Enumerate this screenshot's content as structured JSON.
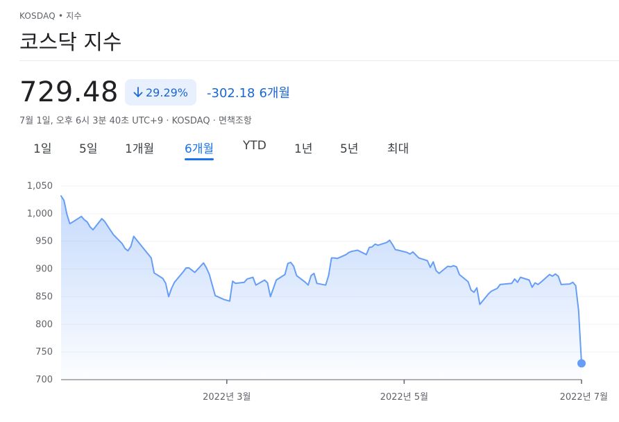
{
  "header": {
    "exchange": "KOSDAQ",
    "separator": "•",
    "category": "지수",
    "title": "코스닥 지수"
  },
  "quote": {
    "price": "729.48",
    "change_percent": "29.29%",
    "change_abs": "-302.18",
    "change_period": "6개월",
    "timestamp": "7월 1일, 오후 6시 3분 40초 UTC+9 · KOSDAQ · 면책조항"
  },
  "tabs": [
    {
      "label": "1일",
      "active": false
    },
    {
      "label": "5일",
      "active": false
    },
    {
      "label": "1개월",
      "active": false
    },
    {
      "label": "6개월",
      "active": true
    },
    {
      "label": "YTD",
      "active": false
    },
    {
      "label": "1년",
      "active": false
    },
    {
      "label": "5년",
      "active": false
    },
    {
      "label": "최대",
      "active": false
    }
  ],
  "colors": {
    "accent": "#1a73e8",
    "line": "#669df6",
    "negative": "#1967d2"
  },
  "chart_data": {
    "type": "area",
    "title": "",
    "xlabel": "",
    "ylabel": "",
    "ylim": [
      700,
      1050
    ],
    "yticks": [
      700,
      750,
      800,
      850,
      900,
      950,
      1000,
      1050
    ],
    "ytick_labels": [
      "700",
      "750",
      "800",
      "850",
      "900",
      "950",
      "1,000",
      "1,050"
    ],
    "xlim": [
      "2022-01-03",
      "2022-07-01"
    ],
    "xticks": [
      {
        "date": "2022-03-01",
        "label": "2022년 3월"
      },
      {
        "date": "2022-05-01",
        "label": "2022년 5월"
      },
      {
        "date": "2022-07-01",
        "label": "2022년 7월"
      }
    ],
    "grid": true,
    "series": [
      {
        "points": [
          [
            "2022-01-03",
            1032
          ],
          [
            "2022-01-04",
            1024
          ],
          [
            "2022-01-05",
            999
          ],
          [
            "2022-01-06",
            982
          ],
          [
            "2022-01-07",
            985
          ],
          [
            "2022-01-10",
            995
          ],
          [
            "2022-01-11",
            989
          ],
          [
            "2022-01-12",
            985
          ],
          [
            "2022-01-13",
            976
          ],
          [
            "2022-01-14",
            971
          ],
          [
            "2022-01-17",
            991
          ],
          [
            "2022-01-18",
            986
          ],
          [
            "2022-01-19",
            978
          ],
          [
            "2022-01-20",
            970
          ],
          [
            "2022-01-21",
            962
          ],
          [
            "2022-01-24",
            946
          ],
          [
            "2022-01-25",
            937
          ],
          [
            "2022-01-26",
            933
          ],
          [
            "2022-01-27",
            941
          ],
          [
            "2022-01-28",
            959
          ],
          [
            "2022-02-03",
            920
          ],
          [
            "2022-02-04",
            893
          ],
          [
            "2022-02-07",
            883
          ],
          [
            "2022-02-08",
            874
          ],
          [
            "2022-02-09",
            850
          ],
          [
            "2022-02-10",
            865
          ],
          [
            "2022-02-11",
            876
          ],
          [
            "2022-02-14",
            895
          ],
          [
            "2022-02-15",
            902
          ],
          [
            "2022-02-16",
            902
          ],
          [
            "2022-02-17",
            898
          ],
          [
            "2022-02-18",
            894
          ],
          [
            "2022-02-21",
            911
          ],
          [
            "2022-02-22",
            902
          ],
          [
            "2022-02-23",
            890
          ],
          [
            "2022-02-24",
            871
          ],
          [
            "2022-02-25",
            852
          ],
          [
            "2022-02-28",
            845
          ],
          [
            "2022-03-02",
            842
          ],
          [
            "2022-03-03",
            878
          ],
          [
            "2022-03-04",
            874
          ],
          [
            "2022-03-07",
            876
          ],
          [
            "2022-03-08",
            882
          ],
          [
            "2022-03-10",
            885
          ],
          [
            "2022-03-11",
            871
          ],
          [
            "2022-03-14",
            880
          ],
          [
            "2022-03-15",
            875
          ],
          [
            "2022-03-16",
            850
          ],
          [
            "2022-03-17",
            865
          ],
          [
            "2022-03-18",
            880
          ],
          [
            "2022-03-21",
            890
          ],
          [
            "2022-03-22",
            910
          ],
          [
            "2022-03-23",
            912
          ],
          [
            "2022-03-24",
            905
          ],
          [
            "2022-03-25",
            888
          ],
          [
            "2022-03-28",
            876
          ],
          [
            "2022-03-29",
            871
          ],
          [
            "2022-03-30",
            888
          ],
          [
            "2022-03-31",
            892
          ],
          [
            "2022-04-01",
            874
          ],
          [
            "2022-04-04",
            871
          ],
          [
            "2022-04-05",
            888
          ],
          [
            "2022-04-06",
            920
          ],
          [
            "2022-04-07",
            920
          ],
          [
            "2022-04-08",
            919
          ],
          [
            "2022-04-11",
            926
          ],
          [
            "2022-04-12",
            930
          ],
          [
            "2022-04-13",
            932
          ],
          [
            "2022-04-14",
            933
          ],
          [
            "2022-04-15",
            934
          ],
          [
            "2022-04-18",
            926
          ],
          [
            "2022-04-19",
            939
          ],
          [
            "2022-04-20",
            940
          ],
          [
            "2022-04-21",
            945
          ],
          [
            "2022-04-22",
            943
          ],
          [
            "2022-04-25",
            948
          ],
          [
            "2022-04-26",
            952
          ],
          [
            "2022-04-27",
            944
          ],
          [
            "2022-04-28",
            935
          ],
          [
            "2022-04-29",
            934
          ],
          [
            "2022-05-02",
            930
          ],
          [
            "2022-05-03",
            927
          ],
          [
            "2022-05-04",
            931
          ],
          [
            "2022-05-06",
            920
          ],
          [
            "2022-05-09",
            915
          ],
          [
            "2022-05-10",
            903
          ],
          [
            "2022-05-11",
            913
          ],
          [
            "2022-05-12",
            897
          ],
          [
            "2022-05-13",
            892
          ],
          [
            "2022-05-16",
            905
          ],
          [
            "2022-05-17",
            904
          ],
          [
            "2022-05-18",
            906
          ],
          [
            "2022-05-19",
            904
          ],
          [
            "2022-05-20",
            890
          ],
          [
            "2022-05-23",
            877
          ],
          [
            "2022-05-24",
            862
          ],
          [
            "2022-05-25",
            858
          ],
          [
            "2022-05-26",
            866
          ],
          [
            "2022-05-27",
            836
          ],
          [
            "2022-05-30",
            855
          ],
          [
            "2022-05-31",
            860
          ],
          [
            "2022-06-02",
            865
          ],
          [
            "2022-06-03",
            872
          ],
          [
            "2022-06-07",
            874
          ],
          [
            "2022-06-08",
            882
          ],
          [
            "2022-06-09",
            876
          ],
          [
            "2022-06-10",
            885
          ],
          [
            "2022-06-13",
            880
          ],
          [
            "2022-06-14",
            867
          ],
          [
            "2022-06-15",
            875
          ],
          [
            "2022-06-16",
            872
          ],
          [
            "2022-06-17",
            876
          ],
          [
            "2022-06-20",
            890
          ],
          [
            "2022-06-21",
            887
          ],
          [
            "2022-06-22",
            891
          ],
          [
            "2022-06-23",
            887
          ],
          [
            "2022-06-24",
            872
          ],
          [
            "2022-06-27",
            873
          ],
          [
            "2022-06-28",
            876
          ],
          [
            "2022-06-29",
            870
          ],
          [
            "2022-06-30",
            825
          ],
          [
            "2022-07-01",
            729.48
          ]
        ]
      }
    ]
  }
}
